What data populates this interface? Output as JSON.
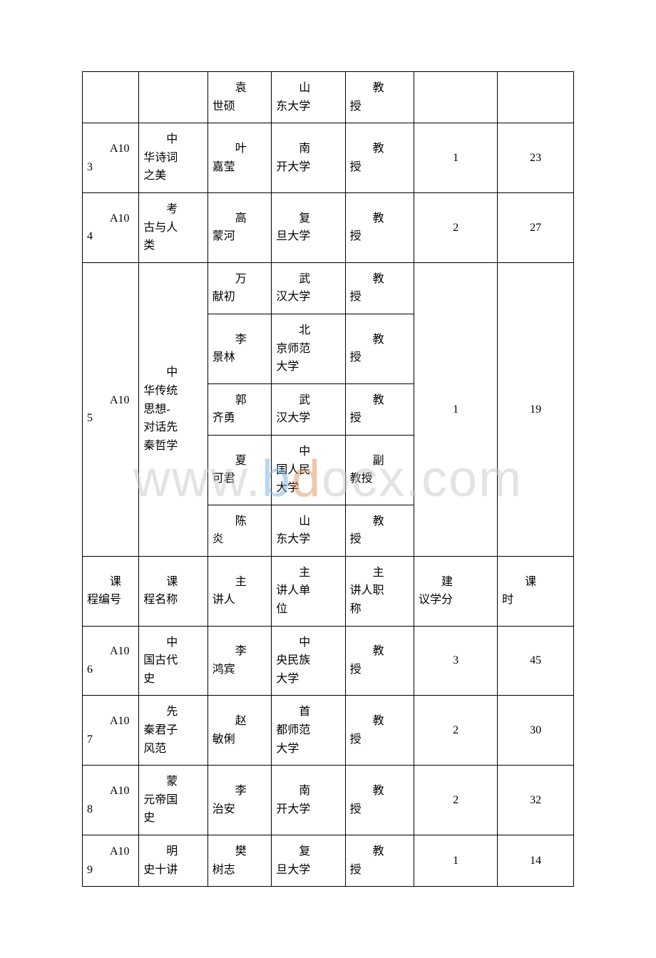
{
  "watermark": {
    "part1": "www.",
    "part2": "b",
    "part3": "d",
    "part4": "ocx.com"
  },
  "table": {
    "border_color": "#000000",
    "background_color": "#ffffff",
    "text_color": "#000000",
    "font_size": 16,
    "columns": [
      {
        "key": "course_code",
        "width": "11.5%"
      },
      {
        "key": "course_name",
        "width": "14%"
      },
      {
        "key": "lecturer",
        "width": "13%"
      },
      {
        "key": "institution",
        "width": "15%"
      },
      {
        "key": "title",
        "width": "14%"
      },
      {
        "key": "credits",
        "width": "17%"
      },
      {
        "key": "hours",
        "width": "15.5%"
      }
    ],
    "rows": [
      {
        "type": "continuation",
        "lecturer": "袁世硕",
        "institution": "山东大学",
        "title": "教授"
      },
      {
        "type": "single",
        "code_line1": "A10",
        "code_line2": "3",
        "course_name": "中华诗词之美",
        "lecturer": "叶嘉莹",
        "institution": "南开大学",
        "title": "教授",
        "credits": "1",
        "hours": "23"
      },
      {
        "type": "single",
        "code_line1": "A10",
        "code_line2": "4",
        "course_name": "考古与人类",
        "lecturer": "高蒙河",
        "institution": "复旦大学",
        "title": "教授",
        "credits": "2",
        "hours": "27"
      },
      {
        "type": "multi",
        "code_line1": "A10",
        "code_line2": "5",
        "course_name": "中华传统思想-对话先秦哲学",
        "credits": "1",
        "hours": "19",
        "subs": [
          {
            "lecturer": "万献初",
            "institution": "武汉大学",
            "title": "教授"
          },
          {
            "lecturer": "李景林",
            "institution": "北京师范大学",
            "title": "教授"
          },
          {
            "lecturer": "郭齐勇",
            "institution": "武汉大学",
            "title": "教授"
          },
          {
            "lecturer": "夏可君",
            "institution": "中国人民大学",
            "title": "副教授"
          },
          {
            "lecturer": "陈炎",
            "institution": "山东大学",
            "title": "教授"
          }
        ]
      },
      {
        "type": "header",
        "h1": "课程编号",
        "h2": "课程名称",
        "h3": "主讲人",
        "h4": "主讲人单位",
        "h5": "主讲人职称",
        "h6": "建议学分",
        "h7": "课时"
      },
      {
        "type": "single",
        "code_line1": "A10",
        "code_line2": "6",
        "course_name": "中国古代史",
        "lecturer": "李鸿宾",
        "institution": "中央民族大学",
        "title": "教授",
        "credits": "3",
        "hours": "45"
      },
      {
        "type": "single",
        "code_line1": "A10",
        "code_line2": "7",
        "course_name": "先秦君子风范",
        "lecturer": "赵敏俐",
        "institution": "首都师范大学",
        "title": "教授",
        "credits": "2",
        "hours": "30"
      },
      {
        "type": "single",
        "code_line1": "A10",
        "code_line2": "8",
        "course_name": "蒙元帝国史",
        "lecturer": "李治安",
        "institution": "南开大学",
        "title": "教授",
        "credits": "2",
        "hours": "32"
      },
      {
        "type": "single",
        "code_line1": "A10",
        "code_line2": "9",
        "course_name": "明史十讲",
        "lecturer": "樊树志",
        "institution": "复旦大学",
        "title": "教授",
        "credits": "1",
        "hours": "14"
      }
    ]
  }
}
